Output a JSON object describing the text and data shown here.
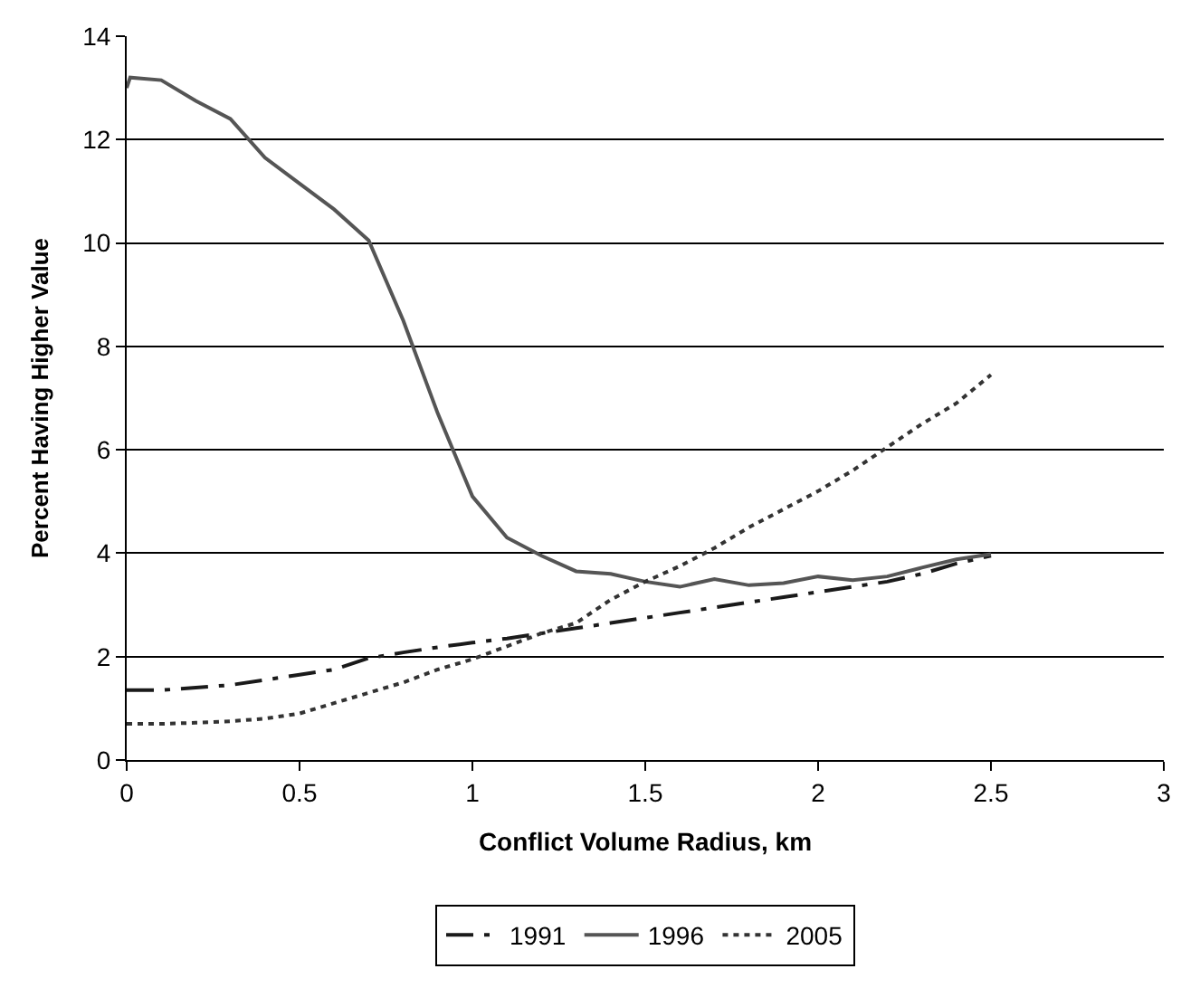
{
  "chart_data": {
    "type": "line",
    "xlabel": "Conflict Volume Radius, km",
    "ylabel": "Percent Having Higher Value",
    "x": [
      0,
      0.1,
      0.2,
      0.3,
      0.4,
      0.5,
      0.6,
      0.7,
      0.8,
      0.9,
      1.0,
      1.1,
      1.2,
      1.3,
      1.4,
      1.5,
      1.6,
      1.7,
      1.8,
      1.9,
      2.0,
      2.1,
      2.2,
      2.3,
      2.4,
      2.5
    ],
    "series": [
      {
        "name": "1991",
        "color": "#1a1a1a",
        "line_style": "dashdot",
        "values": [
          1.35,
          1.35,
          1.4,
          1.45,
          1.55,
          1.65,
          1.75,
          1.97,
          2.08,
          2.18,
          2.27,
          2.35,
          2.45,
          2.55,
          2.65,
          2.75,
          2.85,
          2.95,
          3.05,
          3.15,
          3.25,
          3.35,
          3.45,
          3.6,
          3.8,
          3.95
        ]
      },
      {
        "name": "1996",
        "color": "#555555",
        "line_style": "solid",
        "x": [
          0,
          0.01,
          0.1,
          0.2,
          0.3,
          0.4,
          0.5,
          0.6,
          0.7,
          0.8,
          0.9,
          1.0,
          1.1,
          1.2,
          1.3,
          1.4,
          1.5,
          1.6,
          1.7,
          1.8,
          1.9,
          2.0,
          2.1,
          2.2,
          2.3,
          2.4,
          2.5
        ],
        "values": [
          13.0,
          13.2,
          13.15,
          12.75,
          12.4,
          11.65,
          11.15,
          10.65,
          10.05,
          8.5,
          6.7,
          5.1,
          4.3,
          3.95,
          3.65,
          3.6,
          3.45,
          3.35,
          3.5,
          3.38,
          3.42,
          3.55,
          3.48,
          3.55,
          3.72,
          3.88,
          3.98
        ]
      },
      {
        "name": "2005",
        "color": "#333333",
        "line_style": "dotted",
        "values": [
          0.7,
          0.7,
          0.72,
          0.75,
          0.8,
          0.9,
          1.1,
          1.3,
          1.5,
          1.75,
          1.95,
          2.2,
          2.45,
          2.65,
          3.1,
          3.45,
          3.75,
          4.1,
          4.5,
          4.85,
          5.2,
          5.6,
          6.05,
          6.5,
          6.9,
          7.45
        ]
      }
    ],
    "xlim": [
      0,
      3
    ],
    "xticks": [
      0,
      0.5,
      1,
      1.5,
      2,
      2.5,
      3
    ],
    "ylim": [
      0,
      14
    ],
    "yticks": [
      0,
      2,
      4,
      6,
      8,
      10,
      12,
      14
    ],
    "grid": "y",
    "legend": "bottom",
    "marker": "none"
  }
}
